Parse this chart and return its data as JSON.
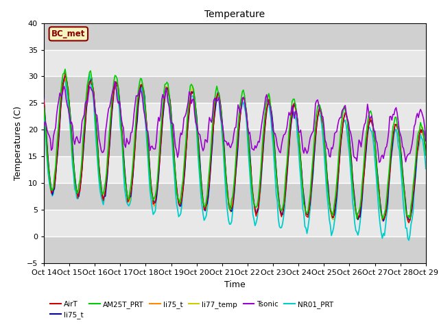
{
  "title": "Temperature",
  "xlabel": "Time",
  "ylabel": "Temperatures (C)",
  "ylim": [
    -5,
    40
  ],
  "xlim": [
    0,
    360
  ],
  "background_color": "#ffffff",
  "plot_bg_color": "#e0e0e0",
  "grid_color": "#ffffff",
  "annotation_text": "BC_met",
  "annotation_color": "#8B0000",
  "annotation_bg": "#f5f5c0",
  "band_colors": [
    "#d0d0d0",
    "#e8e8e8"
  ],
  "series": {
    "AirT": {
      "color": "#cc0000",
      "lw": 1.0,
      "zorder": 6
    },
    "li75_t_blue": {
      "color": "#0000cc",
      "lw": 1.0,
      "zorder": 5
    },
    "AM25T_PRT": {
      "color": "#00cc00",
      "lw": 1.2,
      "zorder": 7
    },
    "li75_t_orange": {
      "color": "#ff8800",
      "lw": 1.0,
      "zorder": 5
    },
    "li77_temp": {
      "color": "#cccc00",
      "lw": 1.0,
      "zorder": 4
    },
    "Tsonic": {
      "color": "#9900cc",
      "lw": 1.2,
      "zorder": 8
    },
    "NR01_PRT": {
      "color": "#00cccc",
      "lw": 1.3,
      "zorder": 3
    }
  },
  "xtick_labels": [
    "Oct 14",
    "Oct 15",
    "Oct 16",
    "Oct 17",
    "Oct 18",
    "Oct 19",
    "Oct 20",
    "Oct 21",
    "Oct 22",
    "Oct 23",
    "Oct 24",
    "Oct 25",
    "Oct 26",
    "Oct 27",
    "Oct 28",
    "Oct 29"
  ],
  "xtick_positions": [
    0,
    24,
    48,
    72,
    96,
    120,
    144,
    168,
    192,
    216,
    240,
    264,
    288,
    312,
    336,
    360
  ],
  "ytick_vals": [
    -5,
    0,
    5,
    10,
    15,
    20,
    25,
    30,
    35,
    40
  ]
}
